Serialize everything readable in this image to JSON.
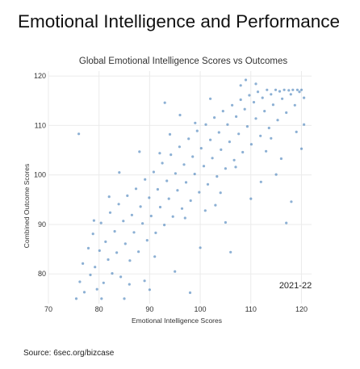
{
  "page": {
    "headline": "Emotional Intelligence and Performance",
    "source": "Source: 6sec.org/bizcase"
  },
  "colors": {
    "point": "#2e6fb0",
    "grid": "#ebebeb",
    "text": "#333333"
  },
  "chart_data": {
    "type": "scatter",
    "title": "Global Emotional Intelligence Scores vs Outcomes",
    "xlabel": "Emotional Intelligence Scores",
    "ylabel": "Combined Outcome Scores",
    "xlim": [
      70,
      122
    ],
    "ylim": [
      74,
      121
    ],
    "xticks": [
      70,
      80,
      90,
      100,
      110,
      120
    ],
    "yticks": [
      80,
      90,
      100,
      110,
      120
    ],
    "annotation": "2021-22",
    "grid": true,
    "series": [
      {
        "points": [
          [
            75.5,
            75
          ],
          [
            76.2,
            78.4
          ],
          [
            76.8,
            82.1
          ],
          [
            77.1,
            76.3
          ],
          [
            77.9,
            85.2
          ],
          [
            78.3,
            79.8
          ],
          [
            78.8,
            88.1
          ],
          [
            79.2,
            81.4
          ],
          [
            79.6,
            76.9
          ],
          [
            80.1,
            84.7
          ],
          [
            80.4,
            90.3
          ],
          [
            80.9,
            78.2
          ],
          [
            81.3,
            86.5
          ],
          [
            81.8,
            82.9
          ],
          [
            82.2,
            92.4
          ],
          [
            82.6,
            80.1
          ],
          [
            83.1,
            88.6
          ],
          [
            83.5,
            84.3
          ],
          [
            83.9,
            94.1
          ],
          [
            84.3,
            79.4
          ],
          [
            84.8,
            90.7
          ],
          [
            85.2,
            86.1
          ],
          [
            85.6,
            95.8
          ],
          [
            86.1,
            82.7
          ],
          [
            86.5,
            91.9
          ],
          [
            86.9,
            88.4
          ],
          [
            87.3,
            97.2
          ],
          [
            87.8,
            84.5
          ],
          [
            88.2,
            93.6
          ],
          [
            88.6,
            90.2
          ],
          [
            89.1,
            99.1
          ],
          [
            89.5,
            86.8
          ],
          [
            89.9,
            95.4
          ],
          [
            90.3,
            91.7
          ],
          [
            90.8,
            100.6
          ],
          [
            91.2,
            88.3
          ],
          [
            91.6,
            97.1
          ],
          [
            92.1,
            93.5
          ],
          [
            92.5,
            102.4
          ],
          [
            92.9,
            89.9
          ],
          [
            93.4,
            98.8
          ],
          [
            93.8,
            95.2
          ],
          [
            94.2,
            104.1
          ],
          [
            94.6,
            91.6
          ],
          [
            95.1,
            100.3
          ],
          [
            95.5,
            96.9
          ],
          [
            95.9,
            105.7
          ],
          [
            96.4,
            93.2
          ],
          [
            96.8,
            102.1
          ],
          [
            97.2,
            98.5
          ],
          [
            97.7,
            107.3
          ],
          [
            98.1,
            94.8
          ],
          [
            98.5,
            103.7
          ],
          [
            98.9,
            100.2
          ],
          [
            99.4,
            108.9
          ],
          [
            99.8,
            96.5
          ],
          [
            100.2,
            105.4
          ],
          [
            100.7,
            101.8
          ],
          [
            101.1,
            110.2
          ],
          [
            101.5,
            98.1
          ],
          [
            102,
            107.1
          ],
          [
            102.4,
            103.4
          ],
          [
            102.8,
            111.6
          ],
          [
            103.3,
            99.7
          ],
          [
            103.7,
            108.6
          ],
          [
            104.1,
            105.1
          ],
          [
            104.5,
            112.9
          ],
          [
            105,
            101.3
          ],
          [
            105.4,
            110.2
          ],
          [
            105.8,
            106.7
          ],
          [
            106.3,
            114.1
          ],
          [
            106.7,
            103
          ],
          [
            107.1,
            111.8
          ],
          [
            107.6,
            108.3
          ],
          [
            108,
            115.2
          ],
          [
            108.4,
            104.6
          ],
          [
            108.8,
            113.3
          ],
          [
            109.3,
            109.8
          ],
          [
            109.7,
            116.1
          ],
          [
            110.1,
            106.2
          ],
          [
            110.6,
            114.7
          ],
          [
            111,
            111.4
          ],
          [
            111.4,
            116.8
          ],
          [
            111.9,
            107.9
          ],
          [
            112.3,
            115.6
          ],
          [
            112.7,
            112.9
          ],
          [
            113.2,
            117.2
          ],
          [
            113.6,
            109.5
          ],
          [
            114,
            116.3
          ],
          [
            114.4,
            114.2
          ],
          [
            114.9,
            117.2
          ],
          [
            115.3,
            111.1
          ],
          [
            115.7,
            116.9
          ],
          [
            116.2,
            115.4
          ],
          [
            116.6,
            117.2
          ],
          [
            117,
            112.6
          ],
          [
            117.5,
            117.1
          ],
          [
            117.9,
            116.3
          ],
          [
            118.3,
            117.2
          ],
          [
            118.7,
            114.1
          ],
          [
            119.2,
            117.2
          ],
          [
            119.6,
            116.8
          ],
          [
            120,
            117.2
          ],
          [
            120.5,
            115.6
          ],
          [
            80.5,
            75
          ],
          [
            85,
            75
          ],
          [
            90,
            76.8
          ],
          [
            95,
            80.5
          ],
          [
            100,
            85.3
          ],
          [
            105,
            90.4
          ],
          [
            110,
            95.2
          ],
          [
            115,
            100.1
          ],
          [
            120,
            105.3
          ],
          [
            76,
            108.3
          ],
          [
            117,
            90.3
          ],
          [
            93,
            114.6
          ],
          [
            120.5,
            110.2
          ],
          [
            118,
            94.6
          ],
          [
            88,
            104.7
          ],
          [
            84,
            100.5
          ],
          [
            112,
            98.6
          ],
          [
            98,
            76.2
          ],
          [
            106,
            84.4
          ],
          [
            79,
            90.8
          ],
          [
            102,
            115.4
          ],
          [
            109,
            119.2
          ],
          [
            116,
            103.3
          ],
          [
            91,
            83.5
          ],
          [
            96,
            112.1
          ],
          [
            101,
            92.8
          ],
          [
            86,
            77.9
          ],
          [
            104,
            96.4
          ],
          [
            113,
            104.8
          ],
          [
            82,
            95.6
          ],
          [
            94,
            108.2
          ],
          [
            108,
            118.1
          ],
          [
            119,
            108.7
          ],
          [
            92,
            104.4
          ],
          [
            97,
            91.3
          ],
          [
            99,
            110.5
          ],
          [
            103,
            93.9
          ],
          [
            107,
            101.6
          ],
          [
            111,
            118.4
          ],
          [
            114,
            107.4
          ],
          [
            89,
            78.6
          ]
        ]
      }
    ]
  }
}
